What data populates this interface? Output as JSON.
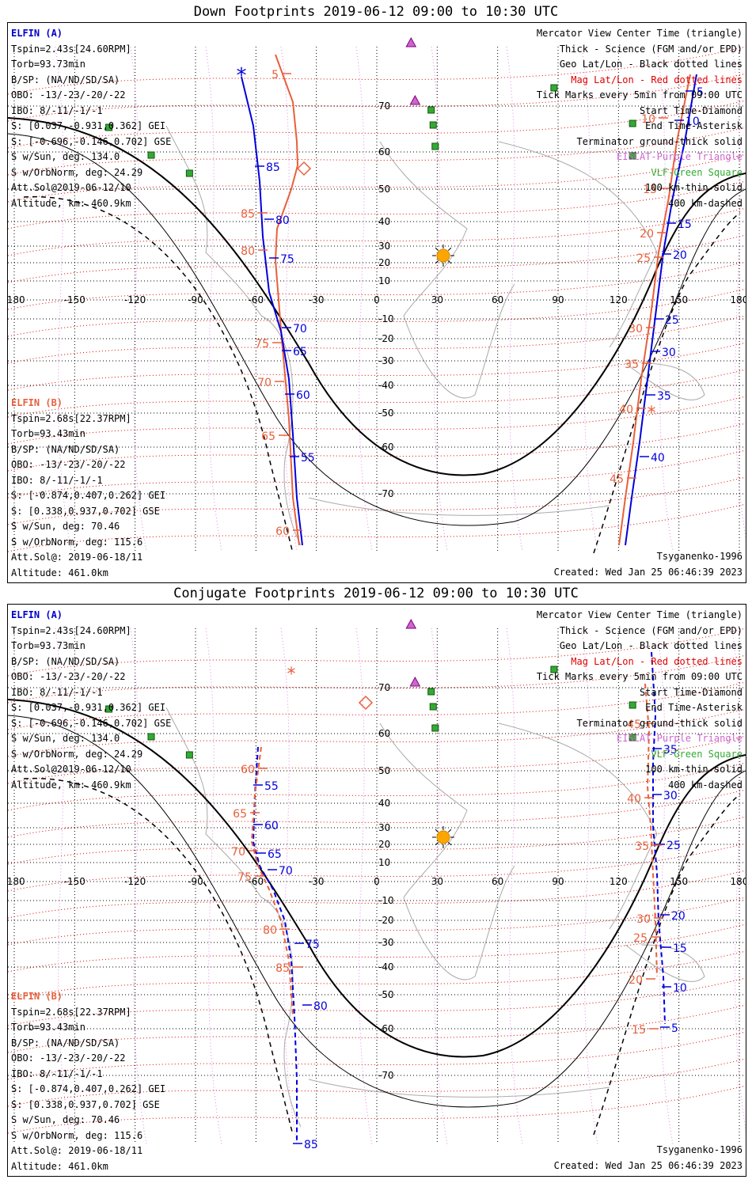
{
  "panels": [
    {
      "title": "Down Footprints 2019-06-12 09:00 to 10:30 UTC",
      "elfin_a": {
        "label": "ELFIN (A)",
        "lines": [
          "Tspin=2.43s[24.60RPM]",
          "Torb=93.73min",
          "B/SP: (NA/ND/SD/SA)",
          "OBO: -13/-23/-20/-22",
          "IBO: 8/-11/-1/-1",
          "S: [0.037,-0.931,0.362] GEI",
          "S: [-0.696,-0.146,0.702] GSE",
          "S w/Sun, deg: 134.0",
          "S w/OrbNorm, deg: 24.29",
          "Att.Sol@2019-06-12/10",
          "Altitude, km: 460.9km"
        ]
      },
      "elfin_b": {
        "label": "ELFIN (B)",
        "lines": [
          "Tspin=2.68s[22.37RPM]",
          "Torb=93.43min",
          "B/SP: (NA/ND/SD/SA)",
          "OBO: -13/-23/-20/-22",
          "IBO: 8/-11/-1/-1",
          "S: [-0.874,0.407,0.262] GEI",
          "S: [0.338,0.937,0.702] GSE",
          "S w/Sun, deg: 70.46",
          "S w/OrbNorm, deg: 115.6",
          "Att.Sol@: 2019-06-18/11"
        ],
        "altitude": "Altitude: 461.0km"
      },
      "legend": [
        "Mercator View Center Time (triangle)",
        "Thick - Science (FGM and/or EPD)",
        "Geo Lat/Lon - Black dotted lines",
        "Mag Lat/Lon - Red dotted lines",
        "Tick Marks every 5min from 09:00 UTC",
        "Start Time-Diamond",
        "End Time-Asterisk",
        "Terminator ground-thick solid",
        "EISCAT-Purple Triangle",
        "VLF-Green Square",
        "100 km-thin solid",
        "400 km-dashed"
      ],
      "model": "Tsyganenko-1996",
      "created": "Created: Wed Jan 25 06:46:39 2023",
      "ticks_a": [
        "85",
        "80",
        "75",
        "70",
        "65",
        "60",
        "55",
        "5",
        "10",
        "15",
        "20",
        "25",
        "30",
        "35",
        "40"
      ],
      "ticks_b": [
        "5",
        "85",
        "80",
        "75",
        "70",
        "65",
        "60",
        "10",
        "15",
        "20",
        "25",
        "30",
        "35",
        "40",
        "45",
        "50"
      ]
    },
    {
      "title": "Conjugate Footprints 2019-06-12 09:00 to 10:30 UTC",
      "elfin_a": {
        "label": "ELFIN (A)",
        "lines": [
          "Tspin=2.43s[24.60RPM]",
          "Torb=93.73min",
          "B/SP: (NA/ND/SD/SA)",
          "OBO: -13/-23/-20/-22",
          "IBO: 8/-11/-1/-1",
          "S: [0.037,-0.931,0.362] GEI",
          "S: [-0.696,-0.146,0.702] GSE",
          "S w/Sun, deg: 134.0",
          "S w/OrbNorm, deg: 24.29",
          "Att.Sol@2019-06-12/10",
          "Altitude, km: 460.9km"
        ]
      },
      "elfin_b": {
        "label": "ELFIN (B)",
        "lines": [
          "Tspin=2.68s[22.37RPM]",
          "Torb=93.43min",
          "B/SP: (NA/ND/SD/SA)",
          "OBO: -13/-23/-20/-22",
          "IBO: 8/-11/-1/-1",
          "S: [-0.874,0.407,0.262] GEI",
          "S: [0.338,0.937,0.702] GSE",
          "S w/Sun, deg: 70.46",
          "S w/OrbNorm, deg: 115.6",
          "Att.Sol@: 2019-06-18/11"
        ],
        "altitude": "Altitude: 461.0km"
      },
      "legend": [
        "Mercator View Center Time (triangle)",
        "Thick - Science (FGM and/or EPD)",
        "Geo Lat/Lon - Black dotted lines",
        "Mag Lat/Lon - Red dotted lines",
        "Tick Marks every 5min from 09:00 UTC",
        "Start Time-Diamond",
        "End Time-Asterisk",
        "Terminator ground-thick solid",
        "EISCAT-Purple Triangle",
        "VLF-Green Square",
        "100 km-thin solid",
        "400 km-dashed"
      ],
      "model": "Tsyganenko-1996",
      "created": "Created: Wed Jan 25 06:46:39 2023",
      "ticks_a": [
        "55",
        "60",
        "65",
        "70",
        "75",
        "80",
        "85",
        "5",
        "10",
        "15",
        "20",
        "25",
        "30",
        "35"
      ],
      "ticks_b": [
        "60",
        "65",
        "70",
        "75",
        "80",
        "85",
        "15",
        "20",
        "25",
        "30",
        "35",
        "40",
        "45"
      ]
    }
  ],
  "axes": {
    "lon_ticks": [
      "-180",
      "-150",
      "-120",
      "-90",
      "-60",
      "-30",
      "0",
      "30",
      "60",
      "90",
      "120",
      "150",
      "180"
    ],
    "lat_ticks": [
      "70",
      "60",
      "50",
      "40",
      "30",
      "20",
      "10",
      "0",
      "-10",
      "-20",
      "-30",
      "-40",
      "-50",
      "-60",
      "-70"
    ]
  },
  "colors": {
    "elfin_a": "#0000dd",
    "elfin_b": "#e8603c",
    "mag_grid": "#e00000",
    "eiscat": "#cc66cc",
    "vlf": "#33aa33",
    "sun": "#ffa500"
  }
}
